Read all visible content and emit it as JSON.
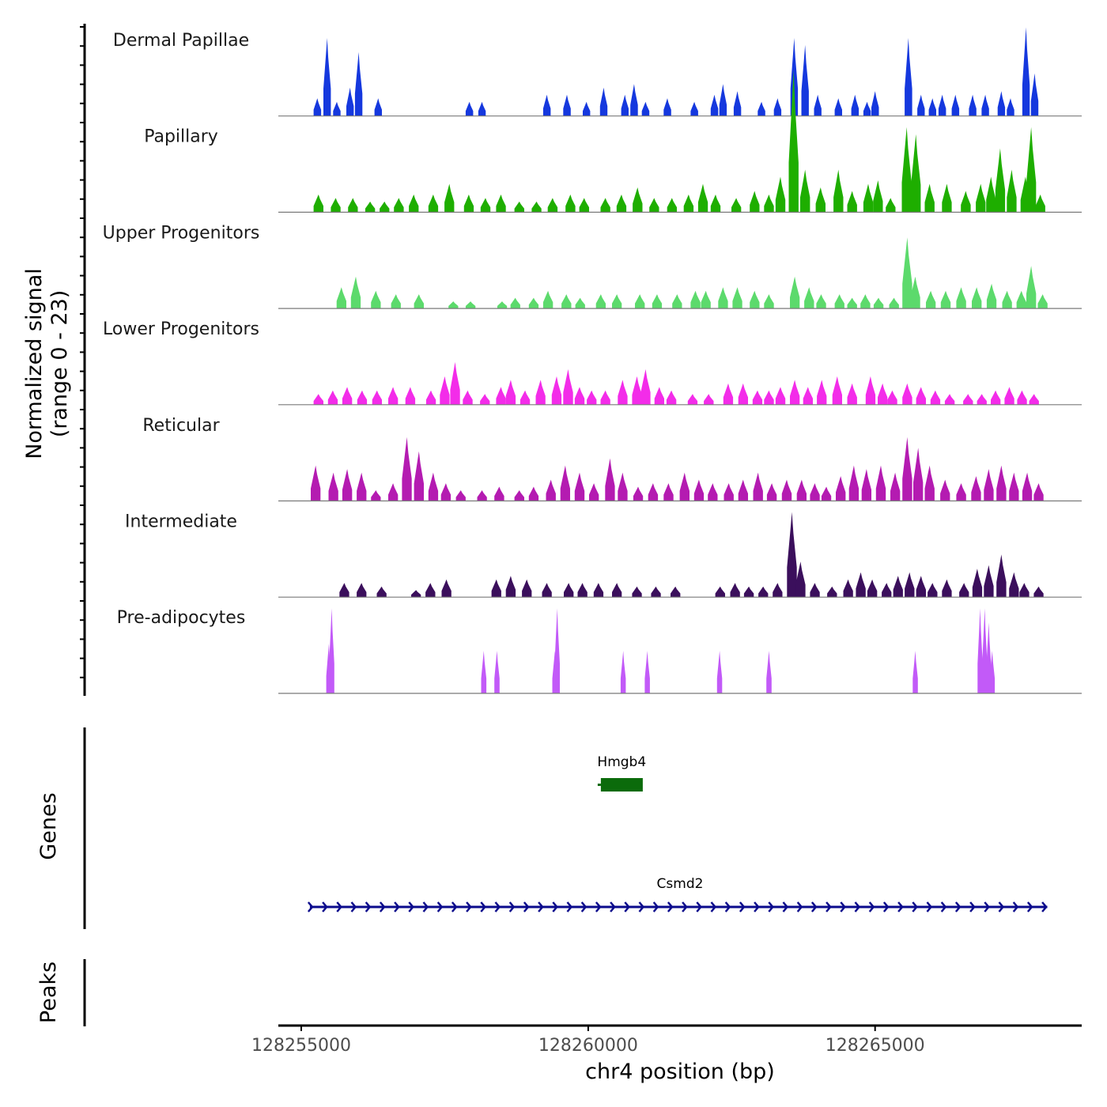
{
  "chart_data": {
    "type": "area",
    "title": "",
    "coverage_axis_title": [
      "Normalized signal",
      "(range 0 - 23)"
    ],
    "genes_axis_title": "Genes",
    "peaks_axis_title": "Peaks",
    "xlabel": "chr4 position (bp)",
    "xlim": [
      128254600,
      128268600
    ],
    "xticks": [
      "128255000",
      "128260000",
      "128265000"
    ],
    "xtick_values": [
      128255000,
      128260000,
      128265000
    ],
    "ylim": [
      0,
      23
    ],
    "tracks": [
      {
        "name": "Dermal Papillae",
        "color": "#1538DE",
        "peaks": [
          [
            128255280,
            5
          ],
          [
            128255450,
            22
          ],
          [
            128255620,
            4
          ],
          [
            128255850,
            8
          ],
          [
            128256000,
            18
          ],
          [
            128256340,
            5
          ],
          [
            128257930,
            4
          ],
          [
            128258150,
            4
          ],
          [
            128259280,
            6
          ],
          [
            128259630,
            6
          ],
          [
            128259970,
            4
          ],
          [
            128260270,
            8
          ],
          [
            128260640,
            6
          ],
          [
            128260800,
            9
          ],
          [
            128261000,
            4
          ],
          [
            128261380,
            5
          ],
          [
            128261850,
            4
          ],
          [
            128262200,
            6
          ],
          [
            128262350,
            9
          ],
          [
            128262600,
            7
          ],
          [
            128263020,
            4
          ],
          [
            128263300,
            5
          ],
          [
            128263590,
            22
          ],
          [
            128263780,
            20
          ],
          [
            128264000,
            6
          ],
          [
            128264360,
            5
          ],
          [
            128264650,
            6
          ],
          [
            128264860,
            4
          ],
          [
            128265000,
            7
          ],
          [
            128265580,
            22
          ],
          [
            128265800,
            6
          ],
          [
            128266000,
            5
          ],
          [
            128266170,
            6
          ],
          [
            128266400,
            6
          ],
          [
            128266700,
            6
          ],
          [
            128266920,
            6
          ],
          [
            128267200,
            7
          ],
          [
            128267360,
            5
          ],
          [
            128267630,
            25
          ],
          [
            128267780,
            12
          ]
        ],
        "width": 130
      },
      {
        "name": "Papillary",
        "color": "#1EAE00",
        "peaks": [
          [
            128255300,
            5
          ],
          [
            128255600,
            4
          ],
          [
            128255900,
            4
          ],
          [
            128256200,
            3
          ],
          [
            128256450,
            3
          ],
          [
            128256700,
            4
          ],
          [
            128256960,
            5
          ],
          [
            128257300,
            5
          ],
          [
            128257580,
            8
          ],
          [
            128257920,
            5
          ],
          [
            128258210,
            4
          ],
          [
            128258480,
            5
          ],
          [
            128258800,
            3
          ],
          [
            128259100,
            3
          ],
          [
            128259380,
            4
          ],
          [
            128259690,
            5
          ],
          [
            128259930,
            4
          ],
          [
            128260300,
            4
          ],
          [
            128260580,
            5
          ],
          [
            128260860,
            7
          ],
          [
            128261150,
            4
          ],
          [
            128261460,
            4
          ],
          [
            128261750,
            5
          ],
          [
            128262000,
            8
          ],
          [
            128262220,
            5
          ],
          [
            128262580,
            4
          ],
          [
            128262900,
            6
          ],
          [
            128263150,
            5
          ],
          [
            128263350,
            10
          ],
          [
            128263580,
            40
          ],
          [
            128263780,
            12
          ],
          [
            128264050,
            7
          ],
          [
            128264360,
            12
          ],
          [
            128264600,
            6
          ],
          [
            128264880,
            8
          ],
          [
            128265050,
            9
          ],
          [
            128265270,
            4
          ],
          [
            128265550,
            24
          ],
          [
            128265710,
            22
          ],
          [
            128265950,
            8
          ],
          [
            128266250,
            8
          ],
          [
            128266580,
            6
          ],
          [
            128266840,
            8
          ],
          [
            128267020,
            10
          ],
          [
            128267180,
            18
          ],
          [
            128267380,
            12
          ],
          [
            128267620,
            10
          ],
          [
            128267720,
            24
          ],
          [
            128267880,
            5
          ]
        ],
        "width": 170
      },
      {
        "name": "Upper Progenitors",
        "color": "#5CDA6C",
        "peaks": [
          [
            128255700,
            6
          ],
          [
            128255950,
            9
          ],
          [
            128256300,
            5
          ],
          [
            128256650,
            4
          ],
          [
            128257050,
            4
          ],
          [
            128257650,
            2
          ],
          [
            128257950,
            2
          ],
          [
            128258500,
            2
          ],
          [
            128258730,
            3
          ],
          [
            128259050,
            3
          ],
          [
            128259300,
            5
          ],
          [
            128259620,
            4
          ],
          [
            128259860,
            3
          ],
          [
            128260220,
            4
          ],
          [
            128260500,
            4
          ],
          [
            128260900,
            4
          ],
          [
            128261200,
            4
          ],
          [
            128261550,
            4
          ],
          [
            128261870,
            5
          ],
          [
            128262050,
            5
          ],
          [
            128262350,
            6
          ],
          [
            128262600,
            6
          ],
          [
            128262900,
            5
          ],
          [
            128263150,
            4
          ],
          [
            128263600,
            9
          ],
          [
            128263850,
            6
          ],
          [
            128264060,
            4
          ],
          [
            128264380,
            4
          ],
          [
            128264600,
            3
          ],
          [
            128264830,
            4
          ],
          [
            128265060,
            3
          ],
          [
            128265330,
            3
          ],
          [
            128265560,
            20
          ],
          [
            128265700,
            9
          ],
          [
            128265970,
            5
          ],
          [
            128266230,
            5
          ],
          [
            128266500,
            6
          ],
          [
            128266770,
            6
          ],
          [
            128267030,
            7
          ],
          [
            128267300,
            5
          ],
          [
            128267550,
            5
          ],
          [
            128267720,
            12
          ],
          [
            128267920,
            4
          ]
        ],
        "width": 170
      },
      {
        "name": "Lower Progenitors",
        "color": "#F32CE9",
        "peaks": [
          [
            128255300,
            3
          ],
          [
            128255550,
            4
          ],
          [
            128255800,
            5
          ],
          [
            128256060,
            4
          ],
          [
            128256320,
            4
          ],
          [
            128256600,
            5
          ],
          [
            128256900,
            5
          ],
          [
            128257260,
            4
          ],
          [
            128257500,
            8
          ],
          [
            128257680,
            12
          ],
          [
            128257900,
            4
          ],
          [
            128258200,
            3
          ],
          [
            128258480,
            5
          ],
          [
            128258650,
            7
          ],
          [
            128258900,
            4
          ],
          [
            128259170,
            7
          ],
          [
            128259450,
            8
          ],
          [
            128259650,
            10
          ],
          [
            128259850,
            5
          ],
          [
            128260060,
            4
          ],
          [
            128260300,
            4
          ],
          [
            128260600,
            7
          ],
          [
            128260850,
            8
          ],
          [
            128261000,
            10
          ],
          [
            128261240,
            5
          ],
          [
            128261450,
            4
          ],
          [
            128261820,
            3
          ],
          [
            128262100,
            3
          ],
          [
            128262440,
            6
          ],
          [
            128262700,
            6
          ],
          [
            128262950,
            4
          ],
          [
            128263150,
            4
          ],
          [
            128263350,
            5
          ],
          [
            128263600,
            7
          ],
          [
            128263830,
            5
          ],
          [
            128264070,
            7
          ],
          [
            128264340,
            8
          ],
          [
            128264600,
            6
          ],
          [
            128264920,
            8
          ],
          [
            128265130,
            6
          ],
          [
            128265300,
            4
          ],
          [
            128265560,
            6
          ],
          [
            128265800,
            5
          ],
          [
            128266050,
            4
          ],
          [
            128266300,
            3
          ],
          [
            128266620,
            3
          ],
          [
            128266860,
            3
          ],
          [
            128267100,
            4
          ],
          [
            128267340,
            5
          ],
          [
            128267560,
            4
          ],
          [
            128267770,
            3
          ]
        ],
        "width": 170
      },
      {
        "name": "Reticular",
        "color": "#B41BB1",
        "peaks": [
          [
            128255250,
            10
          ],
          [
            128255560,
            8
          ],
          [
            128255800,
            9
          ],
          [
            128256050,
            8
          ],
          [
            128256300,
            3
          ],
          [
            128256600,
            5
          ],
          [
            128256840,
            18
          ],
          [
            128257050,
            14
          ],
          [
            128257300,
            8
          ],
          [
            128257520,
            5
          ],
          [
            128257780,
            3
          ],
          [
            128258150,
            3
          ],
          [
            128258450,
            4
          ],
          [
            128258800,
            3
          ],
          [
            128259050,
            4
          ],
          [
            128259350,
            6
          ],
          [
            128259600,
            10
          ],
          [
            128259850,
            8
          ],
          [
            128260100,
            5
          ],
          [
            128260380,
            12
          ],
          [
            128260600,
            8
          ],
          [
            128260870,
            4
          ],
          [
            128261130,
            5
          ],
          [
            128261400,
            5
          ],
          [
            128261680,
            8
          ],
          [
            128261930,
            6
          ],
          [
            128262170,
            5
          ],
          [
            128262450,
            5
          ],
          [
            128262700,
            6
          ],
          [
            128262960,
            8
          ],
          [
            128263200,
            5
          ],
          [
            128263460,
            6
          ],
          [
            128263720,
            6
          ],
          [
            128263950,
            5
          ],
          [
            128264150,
            4
          ],
          [
            128264400,
            7
          ],
          [
            128264630,
            10
          ],
          [
            128264850,
            9
          ],
          [
            128265100,
            10
          ],
          [
            128265350,
            8
          ],
          [
            128265560,
            18
          ],
          [
            128265750,
            15
          ],
          [
            128265950,
            10
          ],
          [
            128266220,
            6
          ],
          [
            128266500,
            5
          ],
          [
            128266760,
            7
          ],
          [
            128266980,
            9
          ],
          [
            128267200,
            10
          ],
          [
            128267420,
            8
          ],
          [
            128267650,
            8
          ],
          [
            128267850,
            5
          ]
        ],
        "width": 170
      },
      {
        "name": "Intermediate",
        "color": "#3B0F5C",
        "peaks": [
          [
            128255750,
            4
          ],
          [
            128256050,
            4
          ],
          [
            128256400,
            3
          ],
          [
            128257000,
            2
          ],
          [
            128257250,
            4
          ],
          [
            128257530,
            5
          ],
          [
            128258400,
            5
          ],
          [
            128258650,
            6
          ],
          [
            128258930,
            5
          ],
          [
            128259280,
            4
          ],
          [
            128259660,
            4
          ],
          [
            128259900,
            4
          ],
          [
            128260180,
            4
          ],
          [
            128260500,
            4
          ],
          [
            128260850,
            3
          ],
          [
            128261180,
            3
          ],
          [
            128261520,
            3
          ],
          [
            128262300,
            3
          ],
          [
            128262560,
            4
          ],
          [
            128262800,
            3
          ],
          [
            128263050,
            3
          ],
          [
            128263300,
            4
          ],
          [
            128263550,
            24
          ],
          [
            128263700,
            10
          ],
          [
            128263950,
            4
          ],
          [
            128264250,
            3
          ],
          [
            128264530,
            5
          ],
          [
            128264750,
            7
          ],
          [
            128264950,
            5
          ],
          [
            128265200,
            4
          ],
          [
            128265400,
            6
          ],
          [
            128265600,
            7
          ],
          [
            128265800,
            6
          ],
          [
            128266000,
            4
          ],
          [
            128266250,
            5
          ],
          [
            128266550,
            4
          ],
          [
            128266780,
            8
          ],
          [
            128266980,
            9
          ],
          [
            128267200,
            12
          ],
          [
            128267420,
            7
          ],
          [
            128267600,
            4
          ],
          [
            128267850,
            3
          ]
        ],
        "width": 170
      },
      {
        "name": "Pre-adipocytes",
        "color": "#C25AF8",
        "peaks": [
          [
            128255480,
            14
          ],
          [
            128255530,
            24
          ],
          [
            128258180,
            12
          ],
          [
            128258410,
            12
          ],
          [
            128259420,
            12
          ],
          [
            128259460,
            24
          ],
          [
            128260610,
            12
          ],
          [
            128261030,
            12
          ],
          [
            128262290,
            12
          ],
          [
            128263150,
            12
          ],
          [
            128265700,
            12
          ],
          [
            128266830,
            24
          ],
          [
            128266910,
            24
          ],
          [
            128266980,
            20
          ],
          [
            128267040,
            12
          ]
        ],
        "width": 90
      }
    ],
    "genes": [
      {
        "name": "Hmgb4",
        "start": 128260220,
        "end": 128260950,
        "strand": "-",
        "color": "#0B6B0B"
      },
      {
        "name": "Csmd2",
        "start": 128255150,
        "end": 128268000,
        "strand": "+",
        "color": "#0B0B8C"
      }
    ]
  }
}
